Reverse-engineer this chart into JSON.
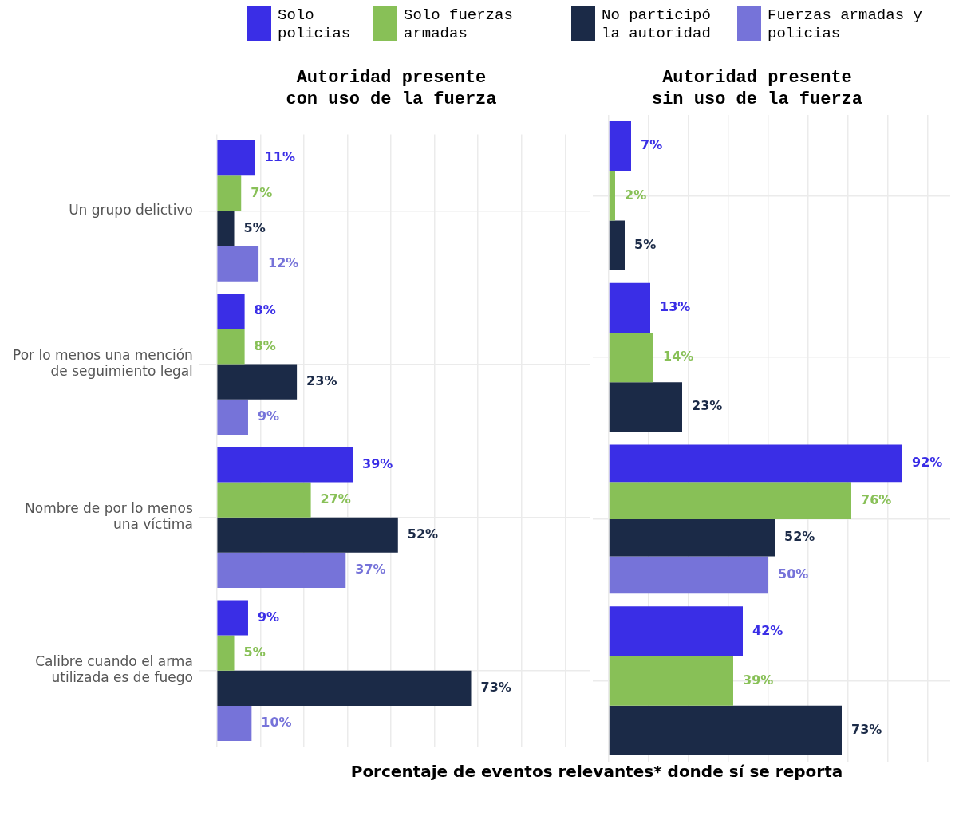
{
  "chart_data": [
    {
      "type": "bar",
      "orientation": "horizontal",
      "title": "Autoridad presente con uso de la fuerza",
      "xlabel": "Porcentaje de eventos relevantes* donde sí se reporta",
      "legend": "top",
      "grid": true,
      "tick_labels": "y",
      "categories": [
        "Un grupo delictivo",
        "Por lo menos una mención de seguimiento legal",
        "Nombre de por lo menos una víctima",
        "Calibre cuando el arma utilizada es de fuego"
      ],
      "xlim": [
        -5,
        107
      ],
      "xticks": [
        {
          "value": 0,
          "label": null
        },
        {
          "value": 12.5,
          "label": null
        },
        {
          "value": 25,
          "label": null
        },
        {
          "value": 37.5,
          "label": null
        },
        {
          "value": 50,
          "label": null
        },
        {
          "value": 62.5,
          "label": null
        },
        {
          "value": 75,
          "label": null
        },
        {
          "value": 87.5,
          "label": null
        },
        {
          "value": 100,
          "label": null
        }
      ],
      "series": [
        {
          "name": "Solo policias",
          "color": "#3a2ee6",
          "values": [
            11,
            8,
            39,
            9
          ],
          "value_labels": [
            "11%",
            "8%",
            "39%",
            "9%"
          ]
        },
        {
          "name": "Solo fuerzas armadas",
          "color": "#88c057",
          "values": [
            7,
            8,
            27,
            5
          ],
          "value_labels": [
            "7%",
            "8%",
            "27%",
            "5%"
          ]
        },
        {
          "name": "No participó la autoridad",
          "color": "#1b2a47",
          "values": [
            5,
            23,
            52,
            73
          ],
          "value_labels": [
            "5%",
            "23%",
            "52%",
            "73%"
          ]
        },
        {
          "name": "Fuerzas armadas y policias",
          "color": "#7673d9",
          "values": [
            12,
            9,
            37,
            10
          ],
          "value_labels": [
            "12%",
            "9%",
            "37%",
            "10%"
          ]
        }
      ]
    },
    {
      "type": "bar",
      "orientation": "horizontal",
      "title": "Autoridad presente sin uso de la fuerza",
      "grid": true,
      "tick_labels": false,
      "categories": [
        null,
        null,
        null,
        null
      ],
      "xlim": [
        -5,
        107
      ],
      "xticks": [
        {
          "value": 0,
          "label": null
        },
        {
          "value": 12.5,
          "label": null
        },
        {
          "value": 25,
          "label": null
        },
        {
          "value": 37.5,
          "label": null
        },
        {
          "value": 50,
          "label": null
        },
        {
          "value": 62.5,
          "label": null
        },
        {
          "value": 75,
          "label": null
        },
        {
          "value": 87.5,
          "label": null
        },
        {
          "value": 100,
          "label": null
        }
      ],
      "series": [
        {
          "color": "#3a2ee6",
          "values": [
            7,
            13,
            92,
            42
          ],
          "value_labels": [
            "7%",
            "13%",
            "92%",
            "42%"
          ]
        },
        {
          "color": "#88c057",
          "values": [
            2,
            14,
            76,
            39
          ],
          "value_labels": [
            "2%",
            "14%",
            "76%",
            "39%"
          ]
        },
        {
          "color": "#1b2a47",
          "values": [
            5,
            23,
            52,
            73
          ],
          "value_labels": [
            "5%",
            "23%",
            "52%",
            "73%"
          ]
        },
        {
          "color": "#7673d9",
          "values": [
            null,
            null,
            50,
            null
          ],
          "value_labels": [
            null,
            null,
            "50%",
            null
          ]
        }
      ]
    }
  ]
}
